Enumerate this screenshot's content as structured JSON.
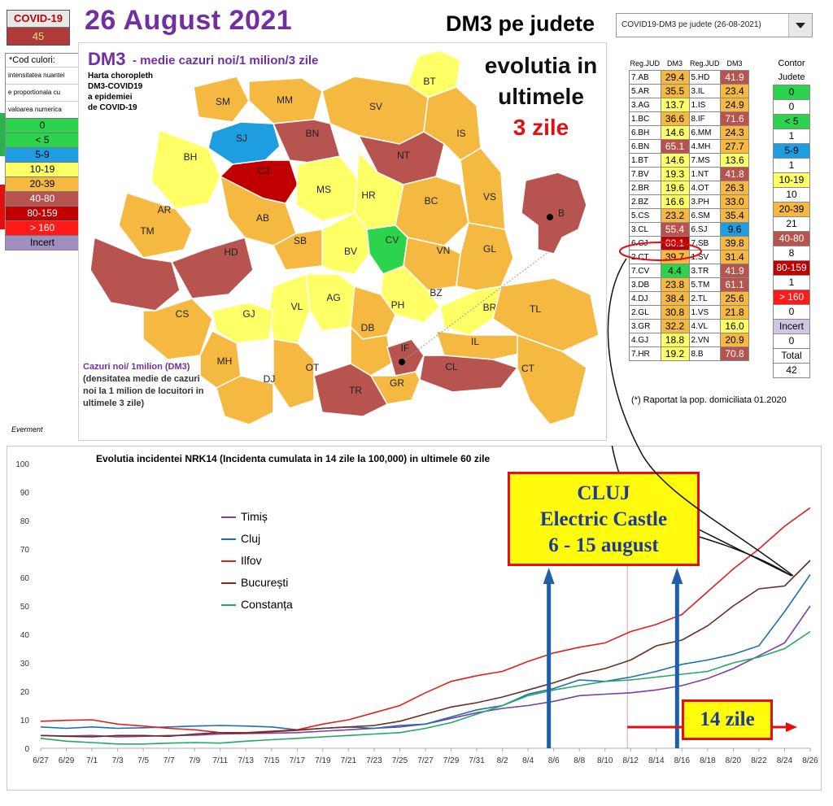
{
  "header": {
    "badge_title": "COVID-19",
    "badge_number": "45",
    "date_title": "26 August 2021",
    "page_title": "DM3 pe judete",
    "select_value": "COVID19-DM3 pe judete (26-08-2021)"
  },
  "legend": {
    "header": "*Cod culori:",
    "notes": [
      "intensitatea nuantei",
      "e proportionala cu",
      "valoarea numerica"
    ],
    "bands": [
      {
        "label": "0",
        "bg": "#2bd44c",
        "fg": "#000"
      },
      {
        "label": "< 5",
        "bg": "#2bd44c",
        "fg": "#000"
      },
      {
        "label": "5-9",
        "bg": "#1e9de0",
        "fg": "#000"
      },
      {
        "label": "10-19",
        "bg": "#ffff66",
        "fg": "#000"
      },
      {
        "label": "20-39",
        "bg": "#f5b942",
        "fg": "#000"
      },
      {
        "label": "40-80",
        "bg": "#b85450",
        "fg": "#fff"
      },
      {
        "label": "80-159",
        "bg": "#c00000",
        "fg": "#fff"
      },
      {
        "label": "> 160",
        "bg": "#ff1a1a",
        "fg": "#fff"
      },
      {
        "label": "Incert",
        "bg": "#9e8fbf",
        "fg": "#000"
      }
    ]
  },
  "map": {
    "heading": "DM3",
    "subheading": "- medie cazuri noi/1 milion/3 zile",
    "description": [
      "Harta choropleth",
      "DM3-COVID19",
      "a epidemiei",
      "de COVID-19"
    ],
    "evolution_title": [
      "evolutia in",
      "ultimele"
    ],
    "evolution_days": "3 zile",
    "cazuri_title": "Cazuri noi/ 1milion (DM3)",
    "cazuri_desc": "(densitatea medie de cazuri noi la 1 milion de locuitori in ultimele 3 zile)",
    "counties": [
      "BT",
      "SM",
      "MM",
      "SV",
      "BN",
      "SJ",
      "IS",
      "NT",
      "CJ",
      "BH",
      "MS",
      "HR",
      "BC",
      "VS",
      "AR",
      "AB",
      "CV",
      "TM",
      "HD",
      "SB",
      "BV",
      "VN",
      "GL",
      "AG",
      "BZ",
      "PH",
      "VL",
      "BR",
      "CS",
      "GJ",
      "TL",
      "DB",
      "IL",
      "MH",
      "OT",
      "IF",
      "CL",
      "CT",
      "DJ",
      "GR",
      "TR",
      "B"
    ]
  },
  "table": {
    "headers": [
      "Reg.JUD",
      "DM3",
      "Reg.JUD",
      "DM3"
    ],
    "rows": [
      [
        "7.AB",
        "29.4",
        "5.HD",
        "41.9"
      ],
      [
        "5.AR",
        "35.5",
        "3.IL",
        "23.4"
      ],
      [
        "3.AG",
        "13.7",
        "1.IS",
        "24.9"
      ],
      [
        "1.BC",
        "36.6",
        "8.IF",
        "71.6"
      ],
      [
        "6.BH",
        "14.6",
        "6.MM",
        "24.3"
      ],
      [
        "6.BN",
        "65.1",
        "4.MH",
        "27.7"
      ],
      [
        "1.BT",
        "14.6",
        "7.MS",
        "13.6"
      ],
      [
        "7.BV",
        "19.3",
        "1.NT",
        "41.8"
      ],
      [
        "2.BR",
        "19.6",
        "4.OT",
        "26.3"
      ],
      [
        "2.BZ",
        "16.6",
        "3.PH",
        "33.0"
      ],
      [
        "5.CS",
        "23.2",
        "6.SM",
        "35.4"
      ],
      [
        "3.CL",
        "55.4",
        "6.SJ",
        "9.6"
      ],
      [
        "6.CJ",
        "80.1",
        "7.SB",
        "39.8"
      ],
      [
        "2.CT",
        "39.7",
        "1.SV",
        "31.4"
      ],
      [
        "7.CV",
        "4.4",
        "3.TR",
        "41.9"
      ],
      [
        "3.DB",
        "23.8",
        "5.TM",
        "61.1"
      ],
      [
        "4.DJ",
        "38.4",
        "2.TL",
        "25.6"
      ],
      [
        "2.GL",
        "30.8",
        "1.VS",
        "21.8"
      ],
      [
        "3.GR",
        "32.2",
        "4.VL",
        "16.0"
      ],
      [
        "4.GJ",
        "18.8",
        "2.VN",
        "20.9"
      ],
      [
        "7.HR",
        "19.2",
        "8.B",
        "70.8"
      ]
    ],
    "counter_header": [
      "Contor",
      "Judete"
    ],
    "counter": [
      {
        "label": "0",
        "bg": "#2bd44c",
        "fg": "#000"
      },
      {
        "label": "0",
        "bg": "#ffffff",
        "fg": "#000"
      },
      {
        "label": "< 5",
        "bg": "#2bd44c",
        "fg": "#000"
      },
      {
        "label": "1",
        "bg": "#ffffff",
        "fg": "#000"
      },
      {
        "label": "5-9",
        "bg": "#1e9de0",
        "fg": "#000"
      },
      {
        "label": "1",
        "bg": "#ffffff",
        "fg": "#000"
      },
      {
        "label": "10-19",
        "bg": "#ffff66",
        "fg": "#000"
      },
      {
        "label": "10",
        "bg": "#ffffff",
        "fg": "#000"
      },
      {
        "label": "20-39",
        "bg": "#f5b942",
        "fg": "#000"
      },
      {
        "label": "21",
        "bg": "#ffffff",
        "fg": "#000"
      },
      {
        "label": "40-80",
        "bg": "#b85450",
        "fg": "#fff"
      },
      {
        "label": "8",
        "bg": "#ffffff",
        "fg": "#000"
      },
      {
        "label": "80-159",
        "bg": "#c00000",
        "fg": "#fff"
      },
      {
        "label": "1",
        "bg": "#ffffff",
        "fg": "#000"
      },
      {
        "label": "> 160",
        "bg": "#ff1a1a",
        "fg": "#fff"
      },
      {
        "label": "0",
        "bg": "#ffffff",
        "fg": "#000"
      },
      {
        "label": "Incert",
        "bg": "#cfc6e3",
        "fg": "#000"
      },
      {
        "label": "0",
        "bg": "#ffffff",
        "fg": "#000"
      },
      {
        "label": "Total",
        "bg": "#ffffff",
        "fg": "#000"
      },
      {
        "label": "42",
        "bg": "#ffffff",
        "fg": "#000"
      }
    ],
    "footnote": "(*) Raportat la pop. domiciliata 01.2020"
  },
  "credit": "Everment",
  "chart_data": {
    "type": "line",
    "title": "Evolutia incidentei NRK14 (Incidenta cumulata in 14 zile la 100,000) in ultimele 60 zile",
    "ylim": [
      0,
      100
    ],
    "yticks": [
      0,
      10,
      20,
      30,
      40,
      50,
      60,
      70,
      80,
      90,
      100
    ],
    "x": [
      "6/27",
      "6/29",
      "7/1",
      "7/3",
      "7/5",
      "7/7",
      "7/9",
      "7/11",
      "7/13",
      "7/15",
      "7/17",
      "7/19",
      "7/21",
      "7/23",
      "7/25",
      "7/27",
      "7/29",
      "7/31",
      "8/2",
      "8/4",
      "8/6",
      "8/8",
      "8/10",
      "8/12",
      "8/14",
      "8/16",
      "8/18",
      "8/20",
      "8/22",
      "8/24",
      "8/26"
    ],
    "series": [
      {
        "name": "Timiș",
        "color": "#7b3fa8",
        "values": [
          4.5,
          4.3,
          4.5,
          4.0,
          4.2,
          4.5,
          4.6,
          5.0,
          5.2,
          5.3,
          5.5,
          6.0,
          6.5,
          7.0,
          7.5,
          8.5,
          10.5,
          12.5,
          14.0,
          15.0,
          16.5,
          18.5,
          19.0,
          19.5,
          20.5,
          22.0,
          24.5,
          28.0,
          32.5,
          37.0,
          50.0
        ]
      },
      {
        "name": "Cluj",
        "color": "#1f6fae",
        "values": [
          7.5,
          7.0,
          7.5,
          7.0,
          7.2,
          7.5,
          7.8,
          8.0,
          7.8,
          7.5,
          6.5,
          7.0,
          7.5,
          7.0,
          8.0,
          8.5,
          11.0,
          13.5,
          15.0,
          19.0,
          21.0,
          24.0,
          23.5,
          25.0,
          27.0,
          29.5,
          31.0,
          33.0,
          36.0,
          48.0,
          61.0
        ]
      },
      {
        "name": "Ilfov",
        "color": "#e02020",
        "values": [
          9.5,
          9.8,
          10.0,
          8.5,
          7.8,
          7.0,
          6.5,
          5.5,
          5.5,
          6.0,
          6.5,
          8.5,
          10.0,
          12.5,
          15.0,
          19.5,
          23.5,
          25.5,
          27.0,
          30.5,
          33.5,
          35.5,
          37.0,
          41.0,
          43.5,
          47.0,
          55.0,
          63.0,
          70.0,
          78.0,
          84.5
        ]
      },
      {
        "name": "București",
        "color": "#6b2d1e",
        "values": [
          4.5,
          4.2,
          4.0,
          4.5,
          4.5,
          4.2,
          5.0,
          5.5,
          5.3,
          5.8,
          6.3,
          7.0,
          7.5,
          8.0,
          9.5,
          12.0,
          14.5,
          16.0,
          18.0,
          20.5,
          23.0,
          26.0,
          28.0,
          31.0,
          36.0,
          38.0,
          43.0,
          50.0,
          56.0,
          57.0,
          66.0
        ]
      },
      {
        "name": "Constanța",
        "color": "#22a86a",
        "values": [
          3.5,
          2.5,
          2.0,
          1.5,
          1.5,
          1.8,
          2.0,
          1.8,
          2.5,
          3.0,
          3.5,
          4.0,
          4.5,
          5.0,
          5.5,
          7.0,
          9.0,
          12.0,
          15.0,
          18.5,
          20.5,
          22.0,
          23.5,
          24.0,
          25.0,
          26.0,
          27.0,
          30.0,
          32.0,
          35.0,
          41.0
        ]
      }
    ],
    "legend_position": "upper-left inside plot",
    "annotations": {
      "cluj_box": [
        "CLUJ",
        "Electric Castle",
        "6 - 15 august"
      ],
      "zile_box": "14 zile"
    }
  }
}
